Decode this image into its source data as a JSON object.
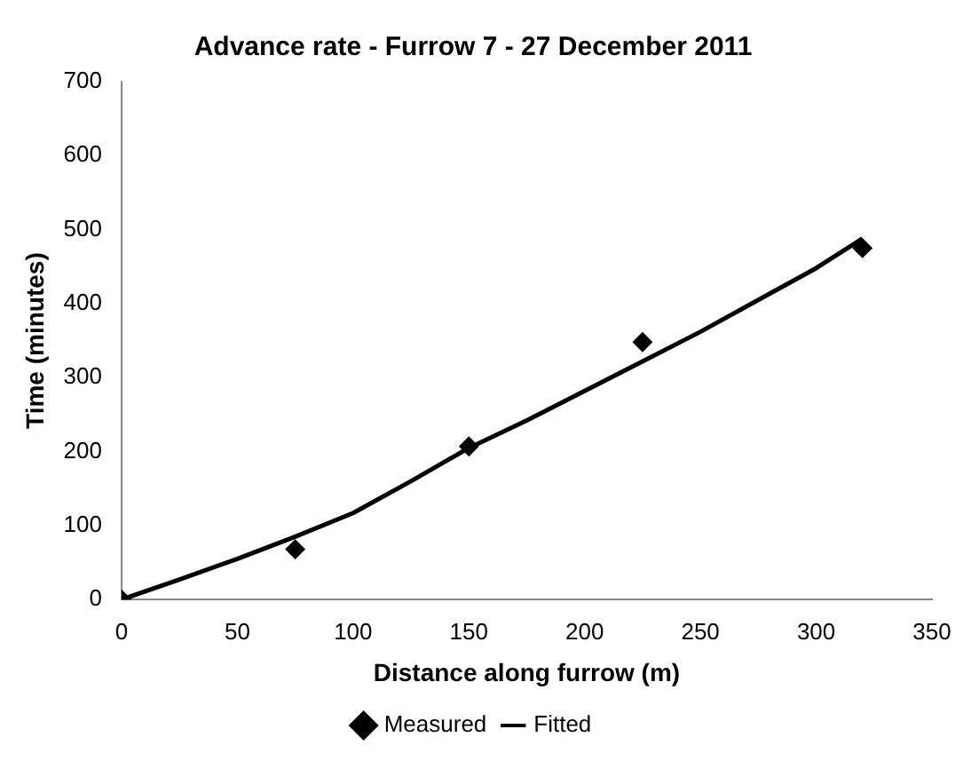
{
  "chart_data": {
    "type": "scatter",
    "title": "Advance rate - Furrow 7 - 27 December 2011",
    "xlabel": "Distance along furrow (m)",
    "ylabel": "Time (minutes)",
    "xlim": [
      0,
      350
    ],
    "xticks": [
      0,
      50,
      100,
      150,
      200,
      250,
      300,
      350
    ],
    "ylim": [
      0,
      700
    ],
    "yticks": [
      0,
      100,
      200,
      300,
      400,
      500,
      600,
      700
    ],
    "grid": false,
    "legend": "bottom",
    "series": [
      {
        "name": "Measured",
        "type": "scatter",
        "marker": "diamond",
        "color": "#000000",
        "x": [
          0,
          75,
          150,
          225,
          320
        ],
        "values": [
          0,
          68,
          207,
          348,
          475
        ]
      },
      {
        "name": "Fitted",
        "type": "line",
        "marker": "none",
        "line_style": "solid",
        "color": "#000000",
        "x": [
          0,
          25,
          50,
          75,
          100,
          125,
          150,
          175,
          200,
          225,
          250,
          275,
          300,
          320
        ],
        "values": [
          0,
          27,
          55,
          85,
          117,
          160,
          205,
          242,
          282,
          322,
          362,
          405,
          448,
          488
        ]
      }
    ]
  }
}
